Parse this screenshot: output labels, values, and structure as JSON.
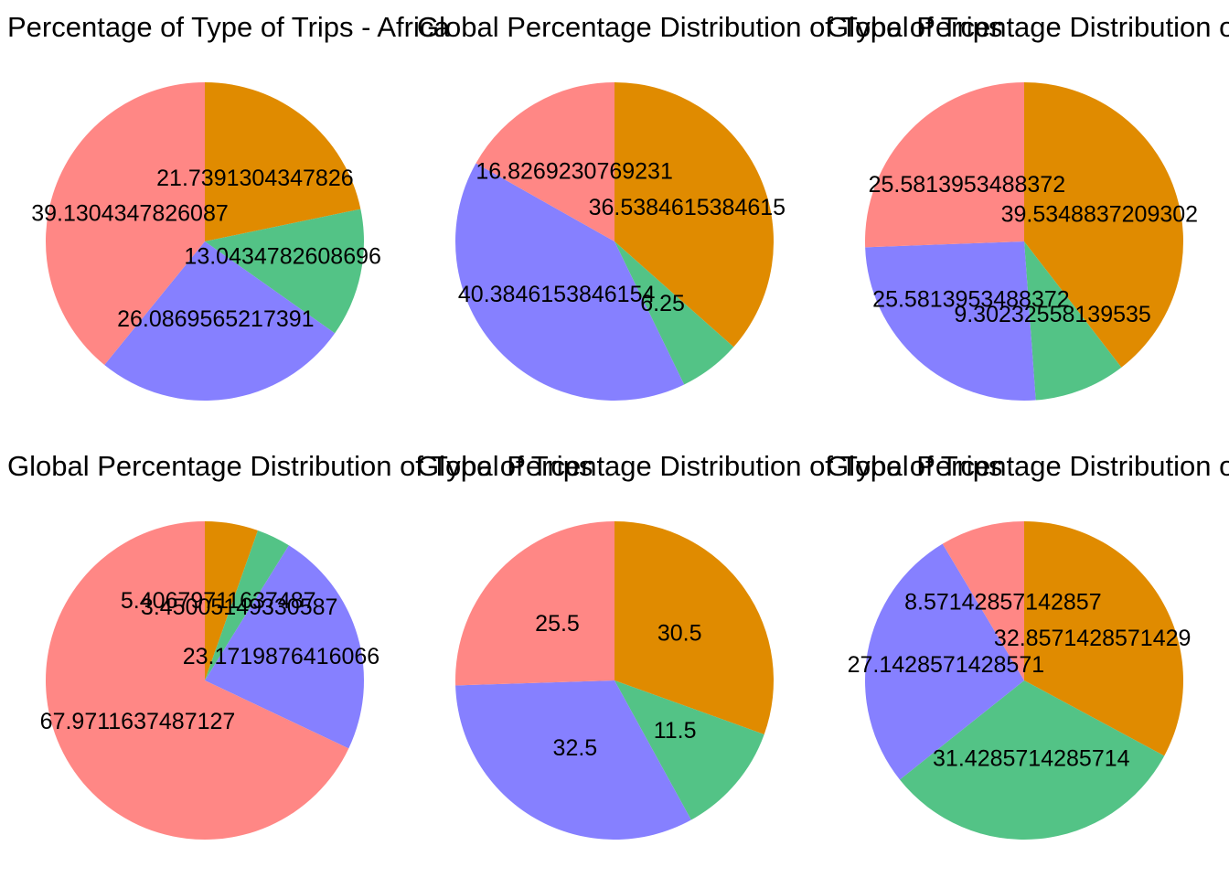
{
  "colors": {
    "orange": "#E08B00",
    "green": "#53C386",
    "purple": "#8680FF",
    "pink": "#FF8785",
    "background": "#FFFFFF",
    "text": "#000000"
  },
  "chart_data": [
    {
      "type": "pie",
      "title": "Percentage of Type of Trips - Africa",
      "start": "12 o'clock",
      "direction": "clockwise",
      "slices": [
        {
          "value": 21.7391304347826,
          "label": "21.7391304347826",
          "color": "#E08B00"
        },
        {
          "value": 13.0434782608696,
          "label": "13.0434782608696",
          "color": "#53C386"
        },
        {
          "value": 26.0869565217391,
          "label": "26.0869565217391",
          "color": "#8680FF"
        },
        {
          "value": 39.1304347826087,
          "label": "39.1304347826087",
          "color": "#FF8785"
        }
      ]
    },
    {
      "type": "pie",
      "title": "Global Percentage Distribution of Type of Trips",
      "start": "12 o'clock",
      "direction": "clockwise",
      "slices": [
        {
          "value": 36.5384615384615,
          "label": "36.5384615384615",
          "color": "#E08B00"
        },
        {
          "value": 6.25,
          "label": "6.25",
          "color": "#53C386"
        },
        {
          "value": 40.3846153846154,
          "label": "40.3846153846154",
          "color": "#8680FF"
        },
        {
          "value": 16.8269230769231,
          "label": "16.8269230769231",
          "color": "#FF8785"
        }
      ]
    },
    {
      "type": "pie",
      "title": "Global Percentage Distribution of Type of Trips",
      "start": "12 o'clock",
      "direction": "clockwise",
      "slices": [
        {
          "value": 39.5348837209302,
          "label": "39.5348837209302",
          "color": "#E08B00"
        },
        {
          "value": 9.30232558139535,
          "label": "9.30232558139535",
          "color": "#53C386"
        },
        {
          "value": 25.5813953488372,
          "label": "25.5813953488372",
          "color": "#8680FF"
        },
        {
          "value": 25.5813953488372,
          "label": "25.5813953488372",
          "color": "#FF8785"
        }
      ]
    },
    {
      "type": "pie",
      "title": "Global Percentage Distribution of Type of Trips",
      "start": "12 o'clock",
      "direction": "clockwise",
      "slices": [
        {
          "value": 5.40679711637487,
          "label": "5.40679711637487",
          "color": "#E08B00"
        },
        {
          "value": 3.45005149330587,
          "label": "3.45005149330587",
          "color": "#53C386"
        },
        {
          "value": 23.1719876416066,
          "label": "23.1719876416066",
          "color": "#8680FF"
        },
        {
          "value": 67.9711637487127,
          "label": "67.9711637487127",
          "color": "#FF8785"
        }
      ]
    },
    {
      "type": "pie",
      "title": "Global Percentage Distribution of Type of Trips",
      "start": "12 o'clock",
      "direction": "clockwise",
      "slices": [
        {
          "value": 30.5,
          "label": "30.5",
          "color": "#E08B00"
        },
        {
          "value": 11.5,
          "label": "11.5",
          "color": "#53C386"
        },
        {
          "value": 32.5,
          "label": "32.5",
          "color": "#8680FF"
        },
        {
          "value": 25.5,
          "label": "25.5",
          "color": "#FF8785"
        }
      ]
    },
    {
      "type": "pie",
      "title": "Global Percentage Distribution of Type of Trips",
      "start": "12 o'clock",
      "direction": "clockwise",
      "slices": [
        {
          "value": 32.8571428571429,
          "label": "32.8571428571429",
          "color": "#E08B00"
        },
        {
          "value": 31.4285714285714,
          "label": "31.4285714285714",
          "color": "#53C386"
        },
        {
          "value": 27.1428571428571,
          "label": "27.1428571428571",
          "color": "#8680FF"
        },
        {
          "value": 8.57142857142857,
          "label": "8.57142857142857",
          "color": "#FF8785"
        }
      ]
    }
  ]
}
